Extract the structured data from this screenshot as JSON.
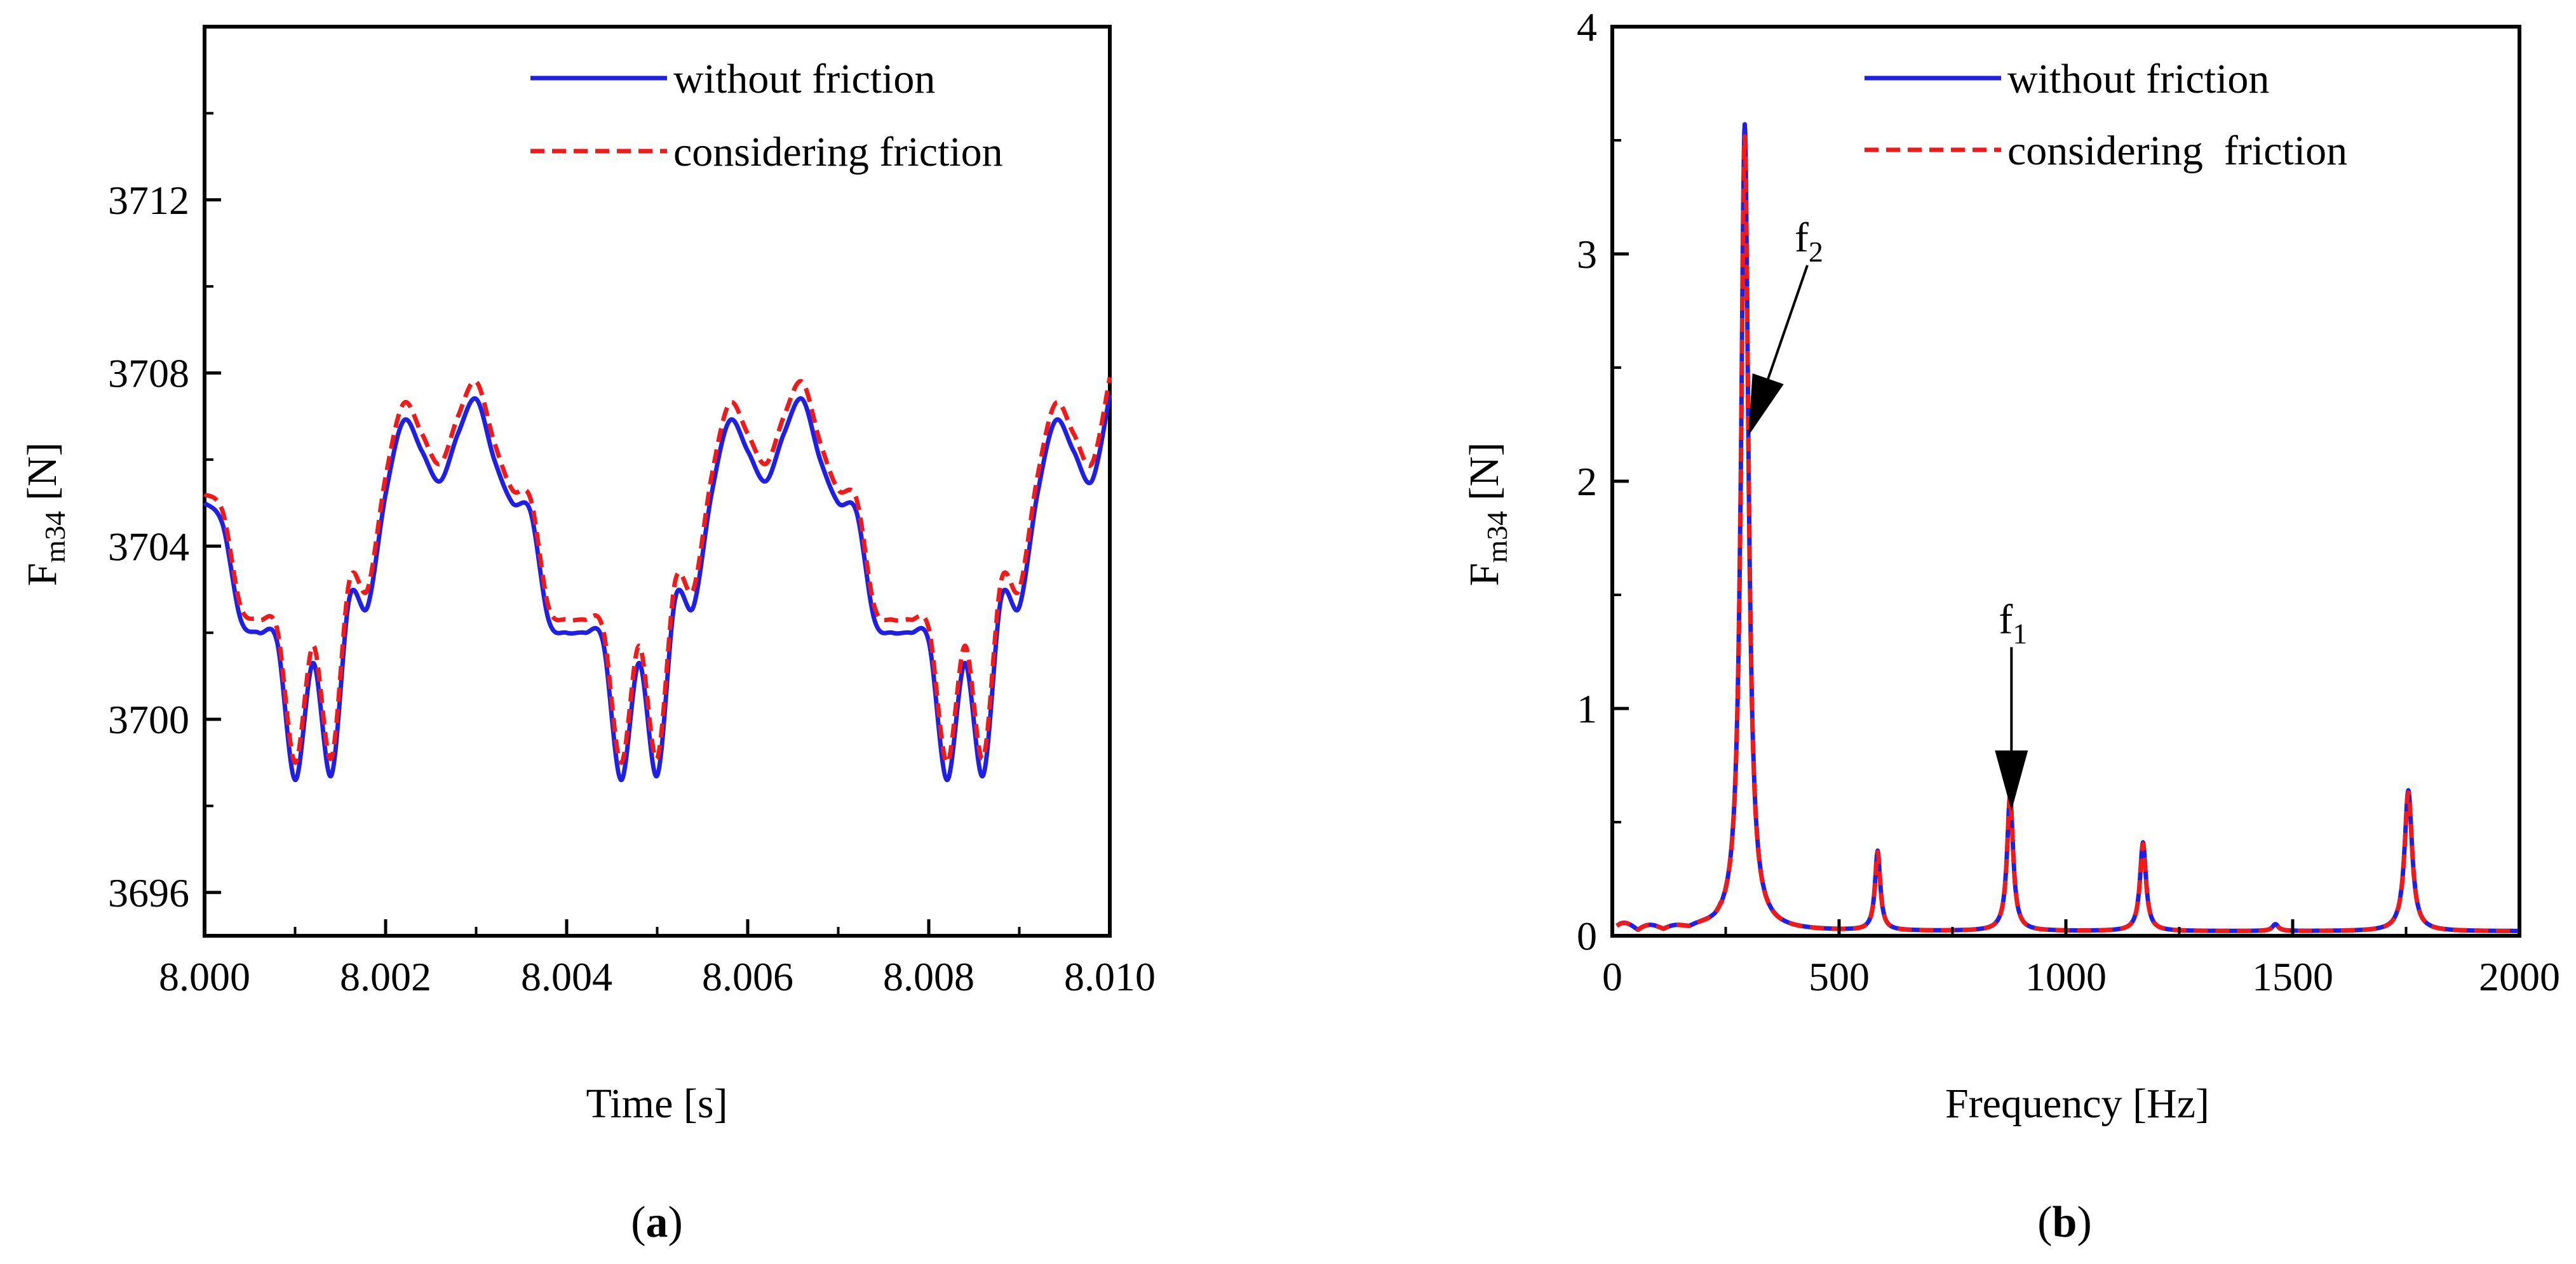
{
  "chart_data": [
    {
      "type": "line",
      "panel_label": "a",
      "xlabel": "Time [s]",
      "ylabel": "F",
      "ylabel_sub": "m34",
      "ylabel_unit": " [N]",
      "xlim": [
        8.0,
        8.01
      ],
      "ylim": [
        3695,
        3716
      ],
      "x_ticks": [
        8.0,
        8.002,
        8.004,
        8.006,
        8.008,
        8.01
      ],
      "x_tick_labels": [
        "8.000",
        "8.002",
        "8.004",
        "8.006",
        "8.008",
        "8.010"
      ],
      "y_ticks": [
        3696,
        3700,
        3704,
        3708,
        3712
      ],
      "y_tick_labels": [
        "3696",
        "3700",
        "3704",
        "3708",
        "3712"
      ],
      "legend": [
        "without friction",
        "considering friction"
      ],
      "legend_position": "top-right",
      "series": [
        {
          "name": "without friction",
          "color": "#1f1fe6",
          "style": "solid",
          "x": [
            8.0,
            8.0002,
            8.0004,
            8.0006,
            8.0008,
            8.001,
            8.0012,
            8.0014,
            8.0016,
            8.0018,
            8.002,
            8.0022,
            8.0024,
            8.0026,
            8.0028,
            8.003,
            8.0032,
            8.0034,
            8.0036,
            8.0038,
            8.004,
            8.0042,
            8.0044,
            8.0046,
            8.0048,
            8.005,
            8.0052,
            8.0054,
            8.0056,
            8.0058,
            8.006,
            8.0062,
            8.0064,
            8.0066,
            8.0068,
            8.007,
            8.0072,
            8.0074,
            8.0076,
            8.0078,
            8.008,
            8.0082,
            8.0084,
            8.0086,
            8.0088,
            8.009,
            8.0092,
            8.0094,
            8.0096,
            8.0098,
            8.01
          ],
          "y": [
            3705.0,
            3704.5,
            3702.3,
            3702.0,
            3701.8,
            3698.6,
            3701.3,
            3698.7,
            3702.8,
            3702.6,
            3705.2,
            3706.9,
            3706.2,
            3705.5,
            3706.6,
            3707.4,
            3706.0,
            3705.0,
            3704.8,
            3702.3,
            3702.0,
            3702.0,
            3701.8,
            3698.6,
            3701.3,
            3698.7,
            3702.8,
            3702.6,
            3705.2,
            3706.9,
            3706.2,
            3705.5,
            3706.6,
            3707.4,
            3706.0,
            3705.0,
            3704.8,
            3702.3,
            3702.0,
            3702.0,
            3701.8,
            3698.6,
            3701.3,
            3698.7,
            3702.8,
            3702.6,
            3705.2,
            3706.9,
            3706.2,
            3705.5,
            3707.5
          ]
        },
        {
          "name": "considering friction",
          "color": "#f01a1a",
          "style": "dashed",
          "x": [
            8.0,
            8.0002,
            8.0004,
            8.0006,
            8.0008,
            8.001,
            8.0012,
            8.0014,
            8.0016,
            8.0018,
            8.002,
            8.0022,
            8.0024,
            8.0026,
            8.0028,
            8.003,
            8.0032,
            8.0034,
            8.0036,
            8.0038,
            8.004,
            8.0042,
            8.0044,
            8.0046,
            8.0048,
            8.005,
            8.0052,
            8.0054,
            8.0056,
            8.0058,
            8.006,
            8.0062,
            8.0064,
            8.0066,
            8.0068,
            8.007,
            8.0072,
            8.0074,
            8.0076,
            8.0078,
            8.008,
            8.0082,
            8.0084,
            8.0086,
            8.0088,
            8.009,
            8.0092,
            8.0094,
            8.0096,
            8.0098,
            8.01
          ],
          "y": [
            3705.2,
            3704.8,
            3702.6,
            3702.3,
            3702.1,
            3699.0,
            3701.7,
            3699.1,
            3703.2,
            3703.0,
            3705.6,
            3707.3,
            3706.6,
            3705.9,
            3707.0,
            3707.8,
            3706.4,
            3705.3,
            3705.1,
            3702.6,
            3702.3,
            3702.3,
            3702.1,
            3699.0,
            3701.7,
            3699.1,
            3703.2,
            3703.0,
            3705.6,
            3707.3,
            3706.6,
            3705.9,
            3707.0,
            3707.8,
            3706.4,
            3705.3,
            3705.1,
            3702.6,
            3702.3,
            3702.3,
            3702.1,
            3699.0,
            3701.7,
            3699.1,
            3703.2,
            3703.0,
            3705.6,
            3707.3,
            3706.6,
            3705.9,
            3707.9
          ]
        }
      ]
    },
    {
      "type": "line",
      "panel_label": "b",
      "xlabel": "Frequency [Hz]",
      "ylabel": "F",
      "ylabel_sub": "m34",
      "ylabel_unit": " [N]",
      "xlim": [
        0,
        2000
      ],
      "ylim": [
        0,
        4
      ],
      "x_ticks": [
        0,
        500,
        1000,
        1500,
        2000
      ],
      "x_tick_labels": [
        "0",
        "500",
        "1000",
        "1500",
        "2000"
      ],
      "y_ticks": [
        0,
        1,
        2,
        3,
        4
      ],
      "y_tick_labels": [
        "0",
        "1",
        "2",
        "3",
        "4"
      ],
      "legend": [
        "without friction",
        "considering  friction"
      ],
      "legend_position": "top-right",
      "peaks": [
        {
          "x": 292,
          "y": 3.55,
          "width": 10
        },
        {
          "x": 585,
          "y": 0.35,
          "width": 7
        },
        {
          "x": 877,
          "y": 0.6,
          "width": 8
        },
        {
          "x": 1170,
          "y": 0.39,
          "width": 8
        },
        {
          "x": 1462,
          "y": 0.03,
          "width": 8
        },
        {
          "x": 1755,
          "y": 0.62,
          "width": 10
        }
      ],
      "baseline": 0.02,
      "annotations": [
        {
          "label": "f",
          "sub": "2",
          "target_x": 300,
          "target_y": 2.2,
          "text_x": 430,
          "text_y": 2.95
        },
        {
          "label": "f",
          "sub": "1",
          "target_x": 880,
          "target_y": 0.55,
          "text_x": 880,
          "text_y": 1.27
        }
      ],
      "series": [
        {
          "name": "without friction",
          "color": "#1f1fe6",
          "style": "solid"
        },
        {
          "name": "considering  friction",
          "color": "#f01a1a",
          "style": "dashed"
        }
      ]
    }
  ]
}
